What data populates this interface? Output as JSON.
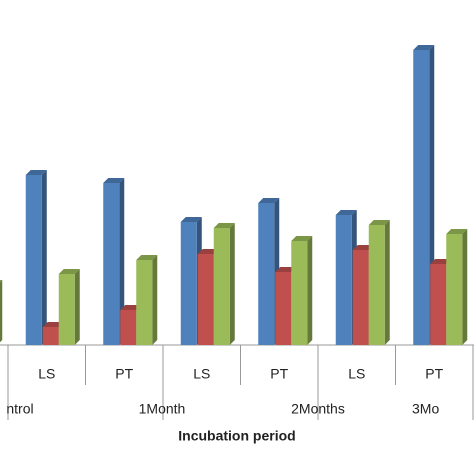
{
  "chart_data": {
    "type": "bar3d",
    "x_label": "Incubation period",
    "categories": [
      null,
      "LS",
      "PT",
      "LS",
      "PT",
      "LS",
      "PT"
    ],
    "groups": [
      "ntrol",
      "1Month",
      "2Months",
      "3Mo"
    ],
    "series": [
      {
        "color": "#4f81bd",
        "values": [
          null,
          170,
          162,
          123,
          142,
          130,
          295
        ]
      },
      {
        "color": "#c0504d",
        "values": [
          null,
          18,
          35,
          91,
          73,
          95,
          81
        ]
      },
      {
        "color": "#9bbb59",
        "values": [
          60,
          71,
          85,
          117,
          104,
          120,
          111
        ]
      }
    ],
    "ylim": [
      0,
      300
    ]
  }
}
